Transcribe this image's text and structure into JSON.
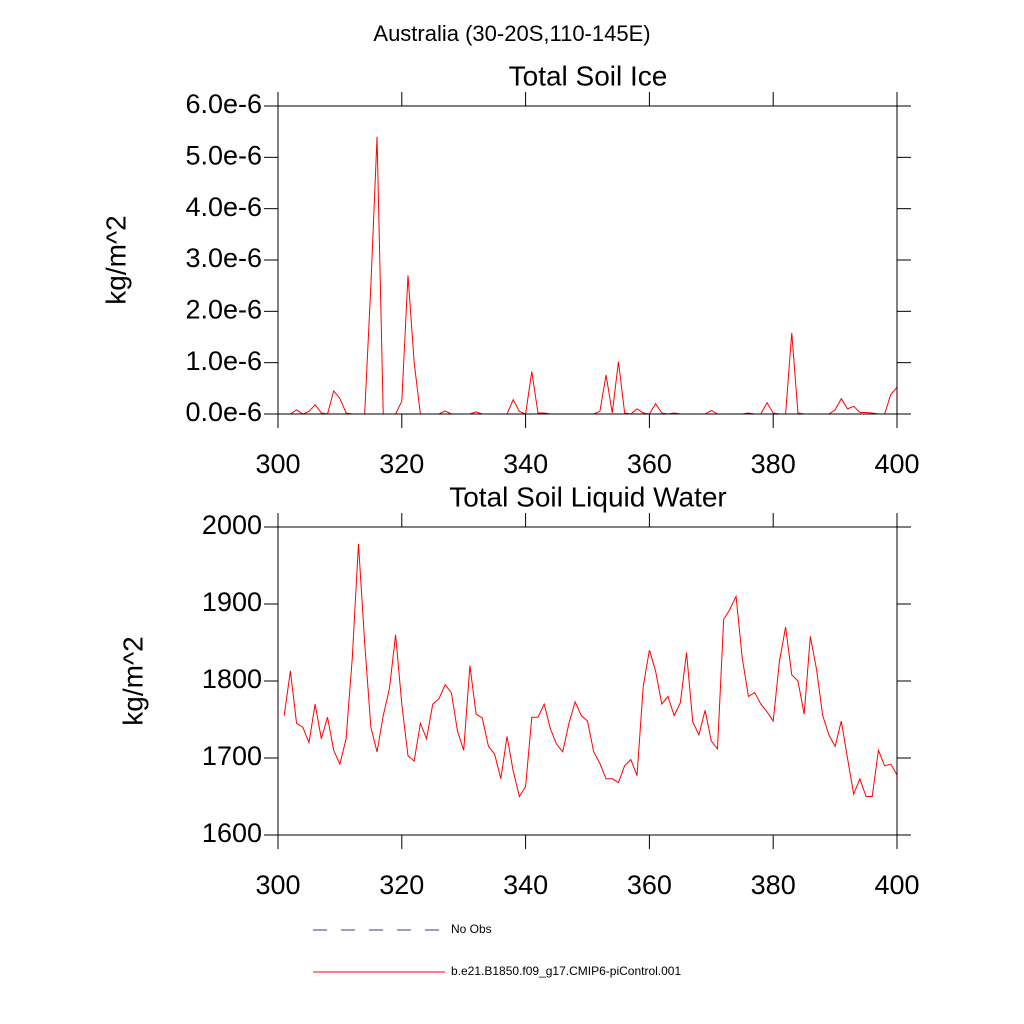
{
  "title": "Australia (30-20S,110-145E)",
  "legend": [
    {
      "name": "No Obs",
      "color": "#3c3c90",
      "dash": true
    },
    {
      "name": "b.e21.B1850.f09_g17.CMIP6-piControl.001",
      "color": "#ff0000",
      "dash": false
    }
  ],
  "chart_data": [
    {
      "type": "line",
      "title": "Total Soil Ice",
      "y_label": "kg/m^2",
      "x": [
        301,
        302,
        303,
        304,
        305,
        306,
        307,
        308,
        309,
        310,
        311,
        312,
        313,
        314,
        315,
        316,
        317,
        318,
        319,
        320,
        321,
        322,
        323,
        324,
        325,
        326,
        327,
        328,
        329,
        330,
        331,
        332,
        333,
        334,
        335,
        336,
        337,
        338,
        339,
        340,
        341,
        342,
        343,
        344,
        345,
        346,
        347,
        348,
        349,
        350,
        351,
        352,
        353,
        354,
        355,
        356,
        357,
        358,
        359,
        360,
        361,
        362,
        363,
        364,
        365,
        366,
        367,
        368,
        369,
        370,
        371,
        372,
        373,
        374,
        375,
        376,
        377,
        378,
        379,
        380,
        381,
        382,
        383,
        384,
        385,
        386,
        387,
        388,
        389,
        390,
        391,
        392,
        393,
        394,
        395,
        396,
        397,
        398,
        399,
        400
      ],
      "series": [
        {
          "color": "#ff0000",
          "values": [
            0,
            0,
            8e-08,
            0,
            5e-08,
            1.8e-07,
            2e-08,
            0,
            4.5e-07,
            3e-07,
            2e-08,
            0,
            0,
            0,
            2.5e-06,
            5.4e-06,
            0,
            0,
            0,
            2.5e-07,
            2.7e-06,
            1e-06,
            0,
            0,
            0,
            0,
            6e-08,
            0,
            0,
            0,
            0,
            4e-08,
            0,
            0,
            0,
            0,
            0,
            2.8e-07,
            5e-08,
            0,
            8.3e-07,
            2e-08,
            2e-08,
            0,
            0,
            0,
            0,
            0,
            0,
            0,
            0,
            5e-08,
            7.6e-07,
            2e-08,
            1.02e-06,
            2e-08,
            0,
            1e-07,
            2e-08,
            0,
            2e-07,
            2e-08,
            0,
            2e-08,
            0,
            0,
            0,
            0,
            0,
            7e-08,
            0,
            0,
            0,
            0,
            0,
            2e-08,
            0,
            0,
            2.2e-07,
            2e-08,
            0,
            0,
            1.58e-06,
            2e-08,
            0,
            0,
            0,
            0,
            0,
            8e-08,
            3e-07,
            1e-07,
            1.5e-07,
            3e-08,
            3e-08,
            2e-08,
            0,
            0,
            3.8e-07,
            5.2e-07
          ]
        }
      ],
      "xlim": [
        300,
        400
      ],
      "xticks": [
        300,
        320,
        340,
        360,
        380,
        400
      ],
      "ylim": [
        0,
        6e-06
      ],
      "yticks": [
        {
          "value": 0,
          "label": "0.0e-6"
        },
        {
          "value": 1e-06,
          "label": "1.0e-6"
        },
        {
          "value": 2e-06,
          "label": "2.0e-6"
        },
        {
          "value": 3e-06,
          "label": "3.0e-6"
        },
        {
          "value": 4e-06,
          "label": "4.0e-6"
        },
        {
          "value": 5e-06,
          "label": "5.0e-6"
        },
        {
          "value": 6e-06,
          "label": "6.0e-6"
        }
      ]
    },
    {
      "type": "line",
      "title": "Total Soil Liquid Water",
      "y_label": "kg/m^2",
      "x": [
        301,
        302,
        303,
        304,
        305,
        306,
        307,
        308,
        309,
        310,
        311,
        312,
        313,
        314,
        315,
        316,
        317,
        318,
        319,
        320,
        321,
        322,
        323,
        324,
        325,
        326,
        327,
        328,
        329,
        330,
        331,
        332,
        333,
        334,
        335,
        336,
        337,
        338,
        339,
        340,
        341,
        342,
        343,
        344,
        345,
        346,
        347,
        348,
        349,
        350,
        351,
        352,
        353,
        354,
        355,
        356,
        357,
        358,
        359,
        360,
        361,
        362,
        363,
        364,
        365,
        366,
        367,
        368,
        369,
        370,
        371,
        372,
        373,
        374,
        375,
        376,
        377,
        378,
        379,
        380,
        381,
        382,
        383,
        384,
        385,
        386,
        387,
        388,
        389,
        390,
        391,
        392,
        393,
        394,
        395,
        396,
        397,
        398,
        399,
        400
      ],
      "series": [
        {
          "color": "#ff0000",
          "values": [
            1755,
            1813,
            1745,
            1740,
            1720,
            1770,
            1725,
            1753,
            1710,
            1692,
            1725,
            1830,
            1978,
            1850,
            1740,
            1708,
            1755,
            1790,
            1860,
            1770,
            1703,
            1696,
            1745,
            1725,
            1770,
            1777,
            1795,
            1785,
            1735,
            1710,
            1820,
            1757,
            1752,
            1715,
            1705,
            1673,
            1728,
            1683,
            1650,
            1663,
            1753,
            1753,
            1770,
            1738,
            1718,
            1708,
            1745,
            1773,
            1755,
            1748,
            1708,
            1693,
            1673,
            1673,
            1668,
            1690,
            1698,
            1677,
            1793,
            1840,
            1813,
            1770,
            1780,
            1755,
            1772,
            1837,
            1747,
            1730,
            1762,
            1722,
            1712,
            1880,
            1893,
            1910,
            1830,
            1780,
            1785,
            1770,
            1760,
            1748,
            1825,
            1870,
            1808,
            1800,
            1757,
            1858,
            1815,
            1755,
            1730,
            1715,
            1748,
            1700,
            1653,
            1673,
            1650,
            1650,
            1710,
            1690,
            1692,
            1678
          ]
        }
      ],
      "xlim": [
        300,
        400
      ],
      "xticks": [
        300,
        320,
        340,
        360,
        380,
        400
      ],
      "ylim": [
        1600,
        2000
      ],
      "yticks": [
        1600,
        1700,
        1800,
        1900,
        2000
      ]
    }
  ]
}
